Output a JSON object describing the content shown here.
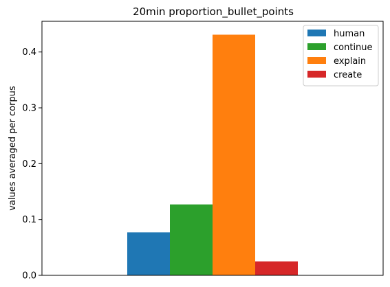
{
  "chart_data": {
    "type": "bar",
    "title": "20min proportion_bullet_points",
    "xlabel": "",
    "ylabel": "values averaged per corpus",
    "ylim": [
      0,
      0.455
    ],
    "yticks": [
      0.0,
      0.1,
      0.2,
      0.3,
      0.4
    ],
    "ytick_labels": [
      "0.0",
      "0.1",
      "0.2",
      "0.3",
      "0.4"
    ],
    "categories": [
      ""
    ],
    "series": [
      {
        "name": "human",
        "color": "#1f77b4",
        "values": [
          0.077
        ]
      },
      {
        "name": "continue",
        "color": "#2ca02c",
        "values": [
          0.127
        ]
      },
      {
        "name": "explain",
        "color": "#ff7f0e",
        "values": [
          0.431
        ]
      },
      {
        "name": "create",
        "color": "#d62728",
        "values": [
          0.025
        ]
      }
    ],
    "legend": "top-right",
    "grid": false
  }
}
